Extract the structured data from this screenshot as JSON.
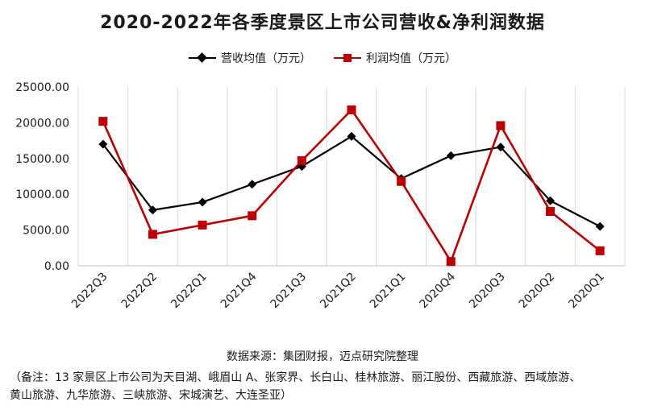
{
  "title": "2020-2022年各季度景区上市公司营收&净利润数据",
  "colors": {
    "revenue": "#000000",
    "profit": "#c00000",
    "grid": "#d9d9d9"
  },
  "chart_data": {
    "type": "line",
    "title": "2020-2022年各季度景区上市公司营收&净利润数据",
    "categories": [
      "2022Q3",
      "2022Q2",
      "2022Q1",
      "2021Q4",
      "2021Q3",
      "2021Q2",
      "2021Q1",
      "2020Q4",
      "2020Q3",
      "2020Q2",
      "2020Q1"
    ],
    "yticks": [
      "0.00",
      "5000.00",
      "10000.00",
      "15000.00",
      "20000.00",
      "25000.00"
    ],
    "ylim": [
      0,
      25000
    ],
    "grid": "vertical",
    "legend_position": "top",
    "series": [
      {
        "name": "营收均值（万元）",
        "marker": "diamond",
        "color": "#000000",
        "values": [
          17000,
          7800,
          8900,
          11400,
          13900,
          18100,
          12200,
          15400,
          16600,
          9100,
          5500
        ]
      },
      {
        "name": "利润均值（万元）",
        "marker": "square",
        "color": "#c00000",
        "values": [
          20200,
          4400,
          5700,
          7000,
          14700,
          21800,
          11800,
          600,
          19600,
          7600,
          2100
        ]
      }
    ]
  },
  "source": "数据来源：集团财报，迈点研究院整理",
  "note": "（备注：13 家景区上市公司为天目湖、峨眉山 A、张家界、长白山、桂林旅游、丽江股份、西藏旅游、西域旅游、黄山旅游、九华旅游、三峡旅游、宋城演艺、大连圣亚）"
}
